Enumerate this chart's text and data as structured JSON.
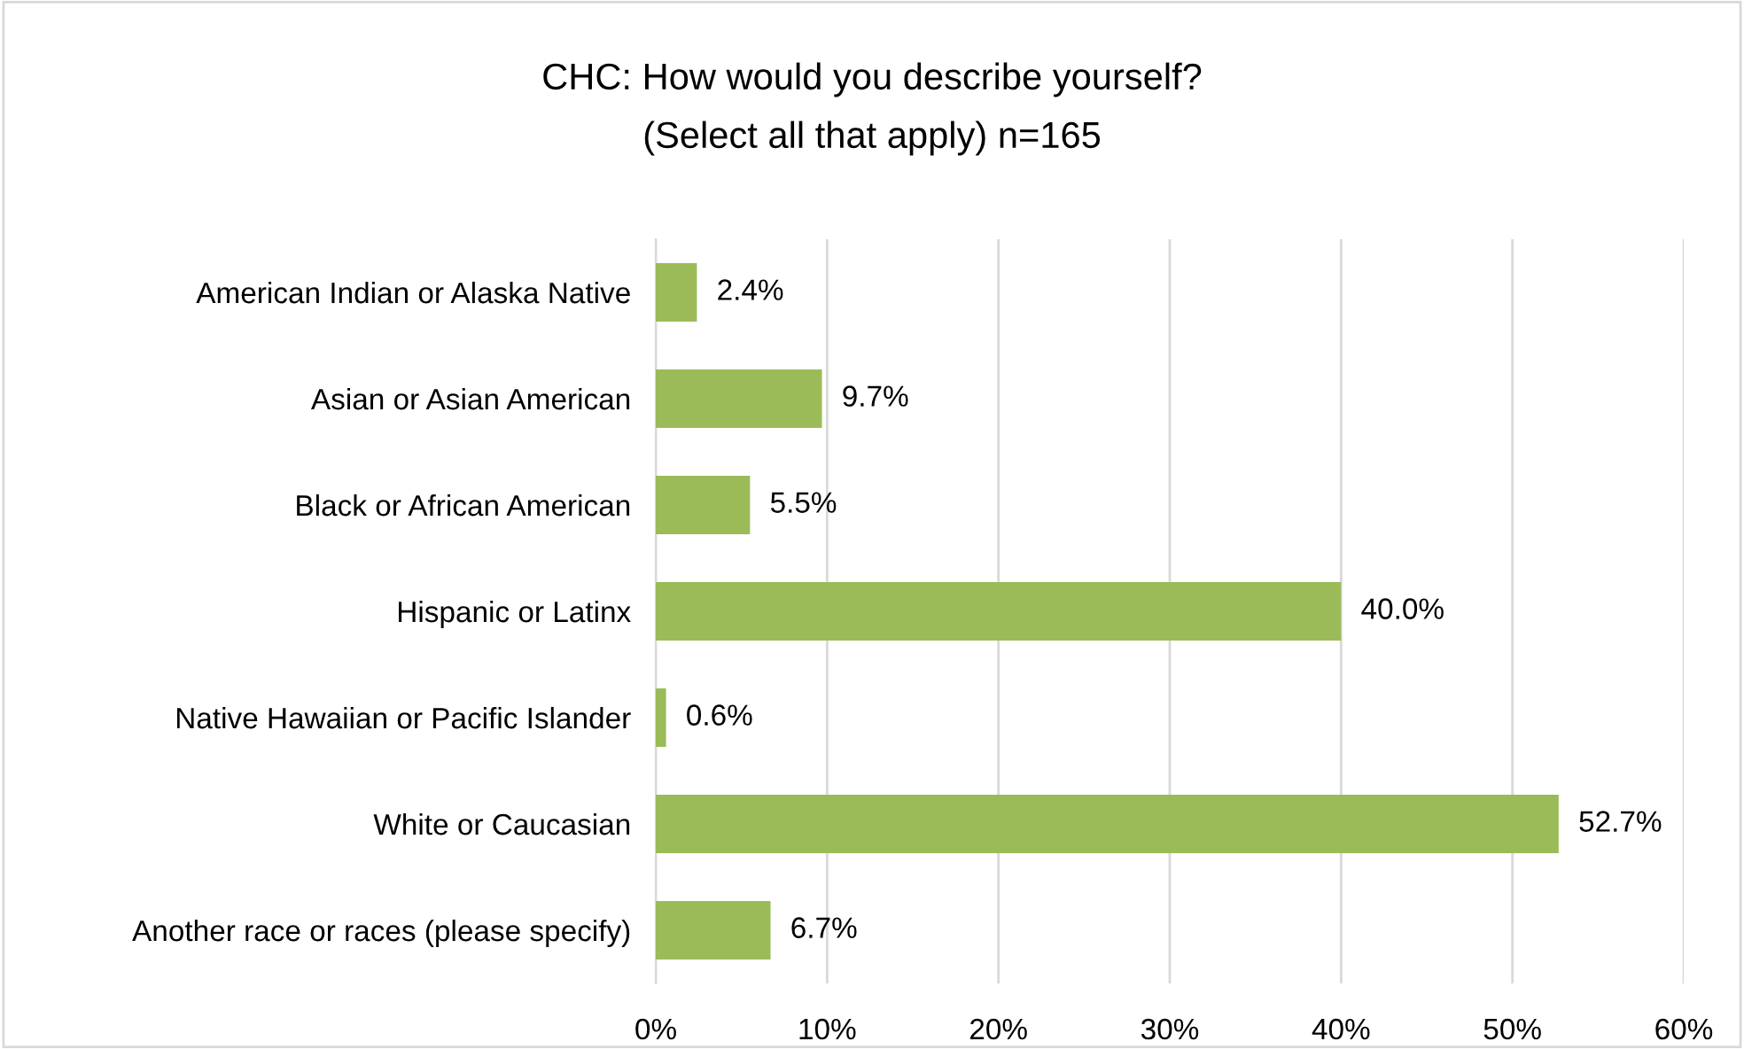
{
  "chart_data": {
    "type": "bar",
    "orientation": "horizontal",
    "title": "CHC: How would you describe yourself?",
    "subtitle": "(Select all that apply) n=165",
    "categories": [
      "American Indian or Alaska Native",
      "Asian or Asian American",
      "Black or African American",
      "Hispanic or Latinx",
      "Native Hawaiian or Pacific Islander",
      "White or Caucasian",
      "Another race or races (please specify)"
    ],
    "values": [
      2.4,
      9.7,
      5.5,
      40.0,
      0.6,
      52.7,
      6.7
    ],
    "value_labels": [
      "2.4%",
      "9.7%",
      "5.5%",
      "40.0%",
      "0.6%",
      "52.7%",
      "6.7%"
    ],
    "color": "#9bbb59",
    "xlim": [
      0,
      60
    ],
    "xticks": [
      {
        "value": 0,
        "label": "0%"
      },
      {
        "value": 10,
        "label": "10%"
      },
      {
        "value": 20,
        "label": "20%"
      },
      {
        "value": 30,
        "label": "30%"
      },
      {
        "value": 40,
        "label": "40%"
      },
      {
        "value": 50,
        "label": "50%"
      },
      {
        "value": 60,
        "label": "60%"
      }
    ],
    "grid": "x"
  }
}
